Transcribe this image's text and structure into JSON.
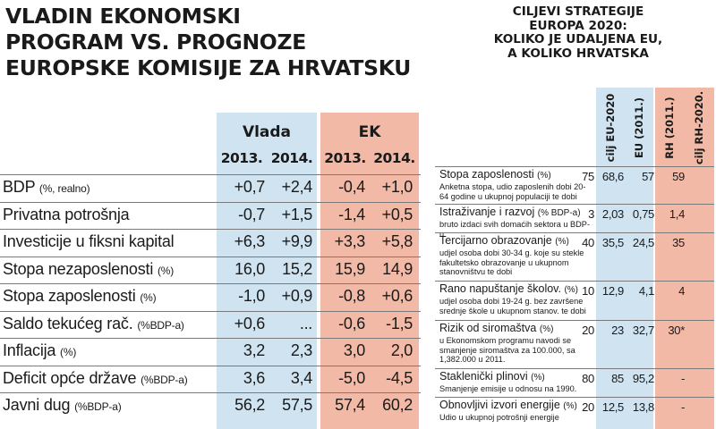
{
  "left": {
    "title_lines": [
      "VLADIN EKONOMSKI",
      "PROGRAM VS. PROGNOZE",
      "EUROPSKE KOMISIJE ZA HRVATSKU"
    ],
    "groups": [
      "Vlada",
      "EK"
    ],
    "years": [
      "2013.",
      "2014.",
      "2013.",
      "2014."
    ],
    "rows": [
      {
        "label": "BDP",
        "unit": "(%, realno)",
        "values": [
          "+0,7",
          "+2,4",
          "-0,4",
          "+1,0"
        ]
      },
      {
        "label": "Privatna potrošnja",
        "unit": "",
        "values": [
          "-0,7",
          "+1,5",
          "-1,4",
          "+0,5"
        ]
      },
      {
        "label": "Investicije u fiksni kapital",
        "unit": "",
        "values": [
          "+6,3",
          "+9,9",
          "+3,3",
          "+5,8"
        ]
      },
      {
        "label": "Stopa nezaposlenosti",
        "unit": "(%)",
        "values": [
          "16,0",
          "15,2",
          "15,9",
          "14,9"
        ]
      },
      {
        "label": "Stopa zaposlenosti",
        "unit": "(%)",
        "values": [
          "-1,0",
          "+0,9",
          "-0,8",
          "+0,6"
        ]
      },
      {
        "label": "Saldo tekućeg rač.",
        "unit": "(%BDP-a)",
        "values": [
          "+0,6",
          "...",
          "-0,6",
          "-1,5"
        ]
      },
      {
        "label": "Inflacija",
        "unit": "(%)",
        "values": [
          "3,2",
          "2,3",
          "3,0",
          "2,0"
        ]
      },
      {
        "label": "Deficit opće države",
        "unit": "(%BDP-a)",
        "values": [
          "3,6",
          "3,4",
          "-5,0",
          "-4,5"
        ]
      },
      {
        "label": "Javni dug",
        "unit": "(%BDP-a)",
        "values": [
          "56,2",
          "57,5",
          "57,4",
          "60,2"
        ]
      }
    ]
  },
  "right": {
    "title_lines": [
      "CILJEVI STRATEGIJE",
      "EUROPA 2020:",
      "KOLIKO JE UDALJENA EU,",
      "A KOLIKO HRVATSKA"
    ],
    "columns": [
      "cilj EU-2020",
      "EU (2011.)",
      "RH (2011.)",
      "cilj RH-2020."
    ],
    "rows": [
      {
        "label": "Stopa zaposlenosti",
        "unit": "(%)",
        "desc": "Anketna stopa, udio zaposlenih dobi 20-64 godine u ukupnoj populaciji te dobi",
        "values": [
          "75",
          "68,6",
          "57",
          "59"
        ]
      },
      {
        "label": "Istraživanje i razvoj",
        "unit": "(% BDP-a)",
        "desc": "bruto izdaci svih domaćih sektora u BDP-u",
        "values": [
          "3",
          "2,03",
          "0,75",
          "1,4"
        ]
      },
      {
        "label": "Tercijarno obrazovanje",
        "unit": "(%)",
        "desc": "udjel osoba dobi 30-34 g. koje su stekle fakultetsko obrazovanje u ukupnom stanovništvu te dobi",
        "values": [
          "40",
          "35,5",
          "24,5",
          "35"
        ]
      },
      {
        "label": "Rano napuštanje školov.",
        "unit": "(%)",
        "desc": "udjel osoba dobi 19-24 g. bez završene srednje škole u ukupnom stanov. te dobi",
        "values": [
          "10",
          "12,9",
          "4,1",
          "4"
        ]
      },
      {
        "label": "Rizik od siromaštva",
        "unit": "(%)",
        "desc": "u Ekonomskom programu navodi se smanjenje siromaštva za 100.000, sa 1,382.000 u 2011.",
        "values": [
          "20",
          "23",
          "32,7",
          "30*"
        ]
      },
      {
        "label": "Staklenički plinovi",
        "unit": "(%)",
        "desc": "Smanjenje emisije u odnosu na 1990.",
        "values": [
          "80",
          "85",
          "95,2",
          "-"
        ]
      },
      {
        "label": "Obnovljivi izvori energije",
        "unit": "(%)",
        "desc": "Udio u ukupnoj potrošnji energije",
        "values": [
          "20",
          "12,5",
          "13,8",
          "-"
        ]
      }
    ]
  },
  "colors": {
    "blue": "#cfe3f1",
    "salmon": "#f1b9a6",
    "line": "#7a7a7a"
  }
}
